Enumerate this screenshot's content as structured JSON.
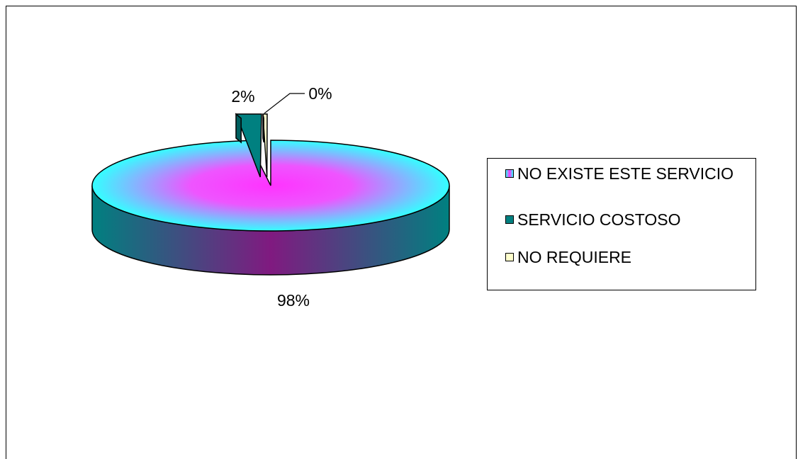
{
  "chart_data": {
    "type": "pie",
    "title": "",
    "three_d": true,
    "legend_position": "right",
    "categories": [
      "NO EXISTE ESTE SERVICIO",
      "SERVICIO COSTOSO",
      "NO REQUIERE"
    ],
    "values": [
      98,
      2,
      0
    ],
    "labels": [
      "98%",
      "2%",
      "0%"
    ],
    "colors": [
      "#33ffff",
      "#008080",
      "#ffffcc"
    ],
    "gradient_center_color": "#ff33ff",
    "exploded_slices": [
      "SERVICIO COSTOSO",
      "NO REQUIERE"
    ]
  }
}
